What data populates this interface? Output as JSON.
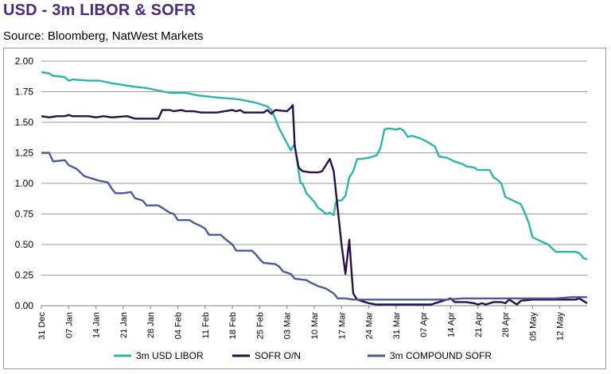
{
  "header": {
    "title": "USD - 3m LIBOR & SOFR",
    "source": "Source: Bloomberg, NatWest Markets"
  },
  "chart_data": {
    "type": "line",
    "title": "USD - 3m LIBOR & SOFR",
    "xlabel": "",
    "ylabel": "",
    "ylim": [
      0,
      2
    ],
    "y_ticks": [
      "2.00",
      "1.75",
      "1.50",
      "1.25",
      "1.00",
      "0.75",
      "0.50",
      "0.25",
      "0.00"
    ],
    "x_range_days": [
      0,
      140
    ],
    "x_ticks": [
      {
        "label": "31 Dec",
        "day": 0
      },
      {
        "label": "07 Jan",
        "day": 7
      },
      {
        "label": "14 Jan",
        "day": 14
      },
      {
        "label": "21 Jan",
        "day": 21
      },
      {
        "label": "28 Jan",
        "day": 28
      },
      {
        "label": "04 Feb",
        "day": 35
      },
      {
        "label": "11 Feb",
        "day": 42
      },
      {
        "label": "18 Feb",
        "day": 49
      },
      {
        "label": "25 Feb",
        "day": 56
      },
      {
        "label": "03 Mar",
        "day": 63
      },
      {
        "label": "10 Mar",
        "day": 70
      },
      {
        "label": "17 Mar",
        "day": 77
      },
      {
        "label": "24 Mar",
        "day": 84
      },
      {
        "label": "31 Mar",
        "day": 91
      },
      {
        "label": "07 Apr",
        "day": 98
      },
      {
        "label": "14 Apr",
        "day": 105
      },
      {
        "label": "21 Apr",
        "day": 112
      },
      {
        "label": "28 Apr",
        "day": 119
      },
      {
        "label": "05 May",
        "day": 126
      },
      {
        "label": "12 May",
        "day": 133
      }
    ],
    "legend_position": "bottom",
    "series": [
      {
        "name": "3m USD LIBOR",
        "color": "#2bb3b1",
        "points": [
          [
            0,
            1.91
          ],
          [
            2,
            1.9
          ],
          [
            3,
            1.88
          ],
          [
            6,
            1.87
          ],
          [
            7,
            1.84
          ],
          [
            8,
            1.85
          ],
          [
            12,
            1.84
          ],
          [
            15,
            1.84
          ],
          [
            18,
            1.82
          ],
          [
            22,
            1.8
          ],
          [
            24,
            1.79
          ],
          [
            27,
            1.78
          ],
          [
            30,
            1.76
          ],
          [
            33,
            1.74
          ],
          [
            37,
            1.74
          ],
          [
            40,
            1.72
          ],
          [
            43,
            1.71
          ],
          [
            46,
            1.7
          ],
          [
            50,
            1.69
          ],
          [
            52,
            1.68
          ],
          [
            55,
            1.66
          ],
          [
            58,
            1.63
          ],
          [
            59,
            1.6
          ],
          [
            60,
            1.53
          ],
          [
            61,
            1.45
          ],
          [
            63,
            1.33
          ],
          [
            64,
            1.27
          ],
          [
            64.5,
            1.3
          ],
          [
            65,
            1.32
          ],
          [
            66,
            1.1
          ],
          [
            66.5,
            1.0
          ],
          [
            67,
            1.0
          ],
          [
            68,
            0.92
          ],
          [
            70,
            0.85
          ],
          [
            71,
            0.8
          ],
          [
            72,
            0.78
          ],
          [
            73,
            0.75
          ],
          [
            74,
            0.76
          ],
          [
            75,
            0.74
          ],
          [
            75.5,
            0.84
          ],
          [
            76,
            0.86
          ],
          [
            77,
            0.86
          ],
          [
            78,
            0.9
          ],
          [
            79,
            1.05
          ],
          [
            80,
            1.1
          ],
          [
            81,
            1.2
          ],
          [
            82,
            1.2
          ],
          [
            84,
            1.21
          ],
          [
            86,
            1.23
          ],
          [
            87,
            1.29
          ],
          [
            88,
            1.44
          ],
          [
            89,
            1.45
          ],
          [
            91,
            1.44
          ],
          [
            92,
            1.45
          ],
          [
            93,
            1.43
          ],
          [
            94,
            1.38
          ],
          [
            95,
            1.39
          ],
          [
            97,
            1.37
          ],
          [
            99,
            1.34
          ],
          [
            101,
            1.3
          ],
          [
            102,
            1.22
          ],
          [
            104,
            1.21
          ],
          [
            106,
            1.18
          ],
          [
            108,
            1.16
          ],
          [
            109,
            1.14
          ],
          [
            111,
            1.13
          ],
          [
            112,
            1.11
          ],
          [
            115,
            1.11
          ],
          [
            116,
            1.05
          ],
          [
            117,
            1.03
          ],
          [
            118,
            1.0
          ],
          [
            119,
            0.89
          ],
          [
            121,
            0.86
          ],
          [
            123,
            0.83
          ],
          [
            124,
            0.76
          ],
          [
            125,
            0.68
          ],
          [
            126,
            0.56
          ],
          [
            128,
            0.53
          ],
          [
            130,
            0.5
          ],
          [
            131,
            0.47
          ],
          [
            132,
            0.44
          ],
          [
            134,
            0.44
          ],
          [
            136,
            0.44
          ],
          [
            137,
            0.44
          ],
          [
            138,
            0.43
          ],
          [
            139,
            0.39
          ],
          [
            140,
            0.38
          ]
        ]
      },
      {
        "name": "SOFR O/N",
        "color": "#2b0d4a",
        "points": [
          [
            0,
            1.55
          ],
          [
            2,
            1.54
          ],
          [
            4,
            1.55
          ],
          [
            6,
            1.55
          ],
          [
            7,
            1.56
          ],
          [
            8,
            1.55
          ],
          [
            12,
            1.55
          ],
          [
            14,
            1.54
          ],
          [
            16,
            1.55
          ],
          [
            18,
            1.54
          ],
          [
            22,
            1.55
          ],
          [
            24,
            1.53
          ],
          [
            28,
            1.53
          ],
          [
            30,
            1.53
          ],
          [
            31,
            1.6
          ],
          [
            33,
            1.6
          ],
          [
            34,
            1.59
          ],
          [
            36,
            1.6
          ],
          [
            37,
            1.59
          ],
          [
            39,
            1.59
          ],
          [
            41,
            1.58
          ],
          [
            45,
            1.58
          ],
          [
            47,
            1.59
          ],
          [
            49,
            1.6
          ],
          [
            50,
            1.59
          ],
          [
            51,
            1.6
          ],
          [
            52,
            1.58
          ],
          [
            54,
            1.58
          ],
          [
            57,
            1.58
          ],
          [
            58,
            1.6
          ],
          [
            59,
            1.57
          ],
          [
            60,
            1.6
          ],
          [
            63,
            1.59
          ],
          [
            64,
            1.62
          ],
          [
            64.5,
            1.64
          ],
          [
            65,
            1.3
          ],
          [
            66,
            1.13
          ],
          [
            67,
            1.1
          ],
          [
            69,
            1.09
          ],
          [
            71,
            1.09
          ],
          [
            72,
            1.1
          ],
          [
            73,
            1.15
          ],
          [
            74,
            1.2
          ],
          [
            75,
            1.1
          ],
          [
            76,
            0.8
          ],
          [
            77,
            0.5
          ],
          [
            78,
            0.26
          ],
          [
            78.5,
            0.4
          ],
          [
            79,
            0.54
          ],
          [
            79.5,
            0.3
          ],
          [
            80,
            0.1
          ],
          [
            81,
            0.05
          ],
          [
            82,
            0.04
          ],
          [
            84,
            0.02
          ],
          [
            86,
            0.01
          ],
          [
            88,
            0.01
          ],
          [
            91,
            0.01
          ],
          [
            95,
            0.01
          ],
          [
            98,
            0.01
          ],
          [
            100,
            0.01
          ],
          [
            101,
            0.02
          ],
          [
            104,
            0.05
          ],
          [
            105,
            0.06
          ],
          [
            106,
            0.03
          ],
          [
            109,
            0.03
          ],
          [
            111,
            0.02
          ],
          [
            112,
            0.01
          ],
          [
            113,
            0.02
          ],
          [
            114,
            0.01
          ],
          [
            116,
            0.03
          ],
          [
            118,
            0.03
          ],
          [
            119,
            0.02
          ],
          [
            120,
            0.05
          ],
          [
            122,
            0.01
          ],
          [
            123,
            0.04
          ],
          [
            126,
            0.05
          ],
          [
            128,
            0.05
          ],
          [
            130,
            0.05
          ],
          [
            133,
            0.05
          ],
          [
            135,
            0.05
          ],
          [
            137,
            0.05
          ],
          [
            138,
            0.06
          ],
          [
            139,
            0.04
          ],
          [
            140,
            0.02
          ]
        ]
      },
      {
        "name": "3m COMPOUND SOFR",
        "color": "#4a5a9e",
        "points": [
          [
            0,
            1.25
          ],
          [
            2,
            1.25
          ],
          [
            3,
            1.18
          ],
          [
            6,
            1.19
          ],
          [
            7,
            1.15
          ],
          [
            9,
            1.12
          ],
          [
            11,
            1.06
          ],
          [
            13,
            1.04
          ],
          [
            15,
            1.02
          ],
          [
            17,
            1.01
          ],
          [
            18,
            0.96
          ],
          [
            19,
            0.92
          ],
          [
            21,
            0.92
          ],
          [
            23,
            0.93
          ],
          [
            24,
            0.88
          ],
          [
            26,
            0.86
          ],
          [
            27,
            0.82
          ],
          [
            30,
            0.82
          ],
          [
            31,
            0.8
          ],
          [
            33,
            0.76
          ],
          [
            34,
            0.75
          ],
          [
            35,
            0.7
          ],
          [
            38,
            0.7
          ],
          [
            39,
            0.68
          ],
          [
            41,
            0.65
          ],
          [
            42,
            0.63
          ],
          [
            43,
            0.58
          ],
          [
            46,
            0.58
          ],
          [
            47,
            0.55
          ],
          [
            49,
            0.5
          ],
          [
            50,
            0.45
          ],
          [
            54,
            0.45
          ],
          [
            55,
            0.42
          ],
          [
            56,
            0.38
          ],
          [
            57,
            0.35
          ],
          [
            60,
            0.34
          ],
          [
            61,
            0.32
          ],
          [
            62,
            0.28
          ],
          [
            64,
            0.26
          ],
          [
            65,
            0.22
          ],
          [
            68,
            0.21
          ],
          [
            69,
            0.19
          ],
          [
            71,
            0.16
          ],
          [
            73,
            0.14
          ],
          [
            75,
            0.1
          ],
          [
            76,
            0.06
          ],
          [
            78,
            0.06
          ],
          [
            80,
            0.05
          ],
          [
            84,
            0.05
          ],
          [
            88,
            0.05
          ],
          [
            92,
            0.05
          ],
          [
            96,
            0.05
          ],
          [
            100,
            0.05
          ],
          [
            104,
            0.05
          ],
          [
            108,
            0.06
          ],
          [
            112,
            0.06
          ],
          [
            116,
            0.06
          ],
          [
            120,
            0.06
          ],
          [
            124,
            0.06
          ],
          [
            128,
            0.06
          ],
          [
            132,
            0.06
          ],
          [
            136,
            0.07
          ],
          [
            140,
            0.07
          ]
        ]
      }
    ]
  }
}
